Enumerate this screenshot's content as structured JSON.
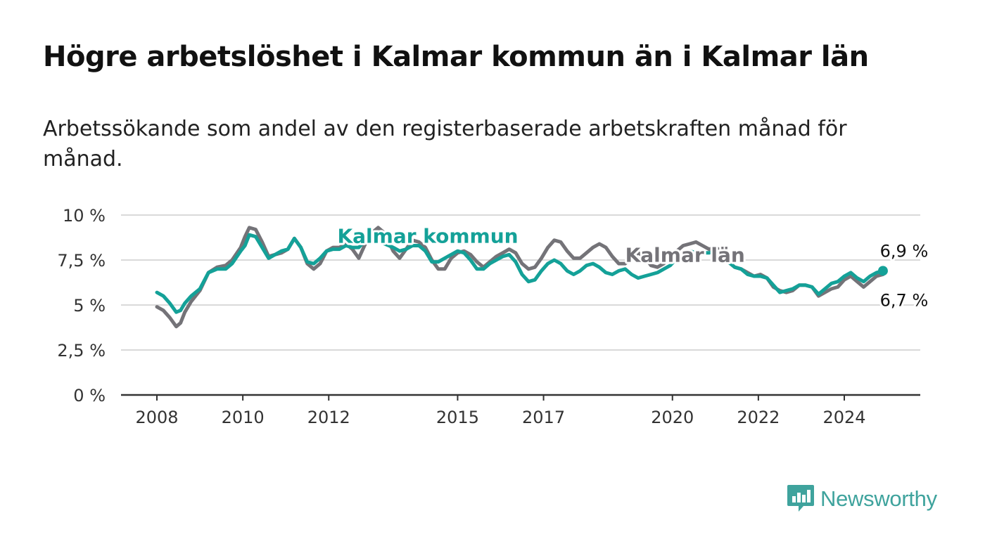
{
  "title": "Högre arbetslöshet i Kalmar kommun än i Kalmar län",
  "subtitle": "Arbetssökande som andel av den registerbaserade arbetskraften månad för månad.",
  "brand": {
    "name": "Newsworthy",
    "color": "#3fa39d"
  },
  "chart_data": {
    "type": "line",
    "title": "Högre arbetslöshet i Kalmar kommun än i Kalmar län",
    "subtitle": "Arbetssökande som andel av den registerbaserade arbetskraften månad för månad.",
    "xlabel": "",
    "ylabel": "",
    "ylim": [
      0,
      10
    ],
    "xlim": [
      2008,
      2025.5
    ],
    "grid": true,
    "yticks": [
      {
        "value": 0,
        "label": "0 %"
      },
      {
        "value": 2.5,
        "label": "2,5 %"
      },
      {
        "value": 5,
        "label": "5 %"
      },
      {
        "value": 7.5,
        "label": "7,5 %"
      },
      {
        "value": 10,
        "label": "10 %"
      }
    ],
    "xticks": [
      {
        "value": 2008,
        "label": "2008"
      },
      {
        "value": 2010,
        "label": "2010"
      },
      {
        "value": 2012,
        "label": "2012"
      },
      {
        "value": 2015,
        "label": "2015"
      },
      {
        "value": 2017,
        "label": "2017"
      },
      {
        "value": 2020,
        "label": "2020"
      },
      {
        "value": 2022,
        "label": "2022"
      },
      {
        "value": 2024,
        "label": "2024"
      }
    ],
    "series": [
      {
        "name": "Kalmar län",
        "color": "#747378",
        "x": [
          2008,
          2008.15,
          2008.3,
          2008.45,
          2008.55,
          2008.65,
          2008.8,
          2009,
          2009.2,
          2009.4,
          2009.6,
          2009.75,
          2009.95,
          2010.05,
          2010.15,
          2010.3,
          2010.45,
          2010.6,
          2010.75,
          2010.9,
          2011.05,
          2011.2,
          2011.35,
          2011.5,
          2011.65,
          2011.8,
          2011.95,
          2012.1,
          2012.25,
          2012.4,
          2012.55,
          2012.7,
          2012.85,
          2013.0,
          2013.15,
          2013.3,
          2013.5,
          2013.65,
          2013.8,
          2013.95,
          2014.1,
          2014.25,
          2014.4,
          2014.55,
          2014.7,
          2014.85,
          2015.0,
          2015.15,
          2015.3,
          2015.45,
          2015.6,
          2015.75,
          2015.9,
          2016.05,
          2016.2,
          2016.35,
          2016.5,
          2016.65,
          2016.8,
          2016.95,
          2017.1,
          2017.25,
          2017.4,
          2017.55,
          2017.7,
          2017.85,
          2018.0,
          2018.15,
          2018.3,
          2018.45,
          2018.6,
          2018.75,
          2018.9,
          2019.05,
          2019.2,
          2019.35,
          2019.5,
          2019.65,
          2019.8,
          2019.95,
          2020.1,
          2020.25,
          2020.4,
          2020.55,
          2020.7,
          2020.85,
          2021.0,
          2021.15,
          2021.3,
          2021.45,
          2021.6,
          2021.75,
          2021.9,
          2022.05,
          2022.2,
          2022.35,
          2022.5,
          2022.65,
          2022.8,
          2022.95,
          2023.1,
          2023.25,
          2023.4,
          2023.55,
          2023.7,
          2023.85,
          2024.0,
          2024.15,
          2024.3,
          2024.45,
          2024.6,
          2024.75,
          2024.9
        ],
        "y": [
          4.9,
          4.7,
          4.3,
          3.8,
          4.0,
          4.6,
          5.2,
          5.8,
          6.8,
          7.1,
          7.2,
          7.5,
          8.2,
          8.8,
          9.3,
          9.2,
          8.5,
          7.7,
          7.8,
          7.9,
          8.1,
          8.7,
          8.2,
          7.3,
          7.0,
          7.3,
          8.0,
          8.2,
          8.2,
          8.4,
          8.1,
          7.6,
          8.4,
          9.0,
          9.3,
          9.0,
          8.0,
          7.6,
          8.1,
          8.6,
          8.5,
          8.2,
          7.5,
          7.0,
          7.0,
          7.6,
          7.9,
          8.0,
          7.8,
          7.4,
          7.1,
          7.4,
          7.7,
          7.9,
          8.1,
          7.9,
          7.3,
          7.0,
          7.1,
          7.6,
          8.2,
          8.6,
          8.5,
          8.0,
          7.6,
          7.6,
          7.9,
          8.2,
          8.4,
          8.2,
          7.7,
          7.3,
          7.3,
          7.6,
          7.9,
          7.7,
          7.2,
          7.1,
          7.3,
          7.7,
          8.0,
          8.3,
          8.4,
          8.5,
          8.3,
          8.1,
          8.2,
          8.0,
          7.4,
          7.1,
          7.0,
          6.8,
          6.6,
          6.7,
          6.5,
          6.0,
          5.8,
          5.7,
          5.8,
          6.1,
          6.1,
          6.0,
          5.5,
          5.7,
          5.9,
          6.0,
          6.4,
          6.6,
          6.3,
          6.0,
          6.3,
          6.6,
          6.7
        ]
      },
      {
        "name": "Kalmar kommun",
        "color": "#14a198",
        "x": [
          2008,
          2008.15,
          2008.3,
          2008.45,
          2008.55,
          2008.65,
          2008.8,
          2009,
          2009.2,
          2009.4,
          2009.6,
          2009.75,
          2009.95,
          2010.05,
          2010.15,
          2010.3,
          2010.45,
          2010.6,
          2010.75,
          2010.9,
          2011.05,
          2011.2,
          2011.35,
          2011.5,
          2011.65,
          2011.8,
          2011.95,
          2012.1,
          2012.25,
          2012.4,
          2012.55,
          2012.7,
          2012.85,
          2013.0,
          2013.15,
          2013.3,
          2013.5,
          2013.65,
          2013.8,
          2013.95,
          2014.1,
          2014.25,
          2014.4,
          2014.55,
          2014.7,
          2014.85,
          2015.0,
          2015.15,
          2015.3,
          2015.45,
          2015.6,
          2015.75,
          2015.9,
          2016.05,
          2016.2,
          2016.35,
          2016.5,
          2016.65,
          2016.8,
          2016.95,
          2017.1,
          2017.25,
          2017.4,
          2017.55,
          2017.7,
          2017.85,
          2018.0,
          2018.15,
          2018.3,
          2018.45,
          2018.6,
          2018.75,
          2018.9,
          2019.05,
          2019.2,
          2019.35,
          2019.5,
          2019.65,
          2019.8,
          2019.95,
          2020.1,
          2020.25,
          2020.4,
          2020.55,
          2020.7,
          2020.85,
          2021.0,
          2021.15,
          2021.3,
          2021.45,
          2021.6,
          2021.75,
          2021.9,
          2022.05,
          2022.2,
          2022.35,
          2022.5,
          2022.65,
          2022.8,
          2022.95,
          2023.1,
          2023.25,
          2023.4,
          2023.55,
          2023.7,
          2023.85,
          2024.0,
          2024.15,
          2024.3,
          2024.45,
          2024.6,
          2024.75,
          2024.9
        ],
        "y": [
          5.7,
          5.5,
          5.1,
          4.6,
          4.7,
          5.1,
          5.5,
          5.9,
          6.8,
          7.0,
          7.0,
          7.3,
          8.0,
          8.3,
          8.9,
          8.8,
          8.2,
          7.6,
          7.8,
          8.0,
          8.1,
          8.7,
          8.2,
          7.4,
          7.3,
          7.6,
          8.0,
          8.1,
          8.1,
          8.3,
          8.2,
          8.2,
          8.6,
          8.7,
          8.8,
          8.4,
          8.2,
          8.0,
          8.1,
          8.3,
          8.3,
          8.0,
          7.4,
          7.4,
          7.6,
          7.8,
          8.0,
          7.9,
          7.5,
          7.0,
          7.0,
          7.3,
          7.5,
          7.7,
          7.8,
          7.4,
          6.7,
          6.3,
          6.4,
          6.9,
          7.3,
          7.5,
          7.3,
          6.9,
          6.7,
          6.9,
          7.2,
          7.3,
          7.1,
          6.8,
          6.7,
          6.9,
          7.0,
          6.7,
          6.5,
          6.6,
          6.7,
          6.8,
          7.0,
          7.2,
          7.6,
          7.8,
          8.0,
          7.9,
          7.9,
          7.9,
          8.0,
          7.8,
          7.4,
          7.1,
          7.0,
          6.7,
          6.6,
          6.6,
          6.5,
          6.1,
          5.7,
          5.8,
          5.9,
          6.1,
          6.1,
          6.0,
          5.6,
          5.9,
          6.2,
          6.3,
          6.6,
          6.8,
          6.5,
          6.3,
          6.6,
          6.8,
          6.9
        ]
      }
    ],
    "annotations": [
      {
        "series": "Kalmar kommun",
        "label": "Kalmar kommun",
        "x": 2012.2,
        "y": 8.45
      },
      {
        "series": "Kalmar län",
        "label": "Kalmar län",
        "x": 2018.9,
        "y": 7.4
      },
      {
        "series": "Kalmar kommun",
        "label": "6,9 %",
        "x": 2024.9,
        "y": 6.9,
        "position": "above"
      },
      {
        "series": "Kalmar län",
        "label": "6,7 %",
        "x": 2024.9,
        "y": 6.7,
        "position": "below"
      }
    ]
  }
}
